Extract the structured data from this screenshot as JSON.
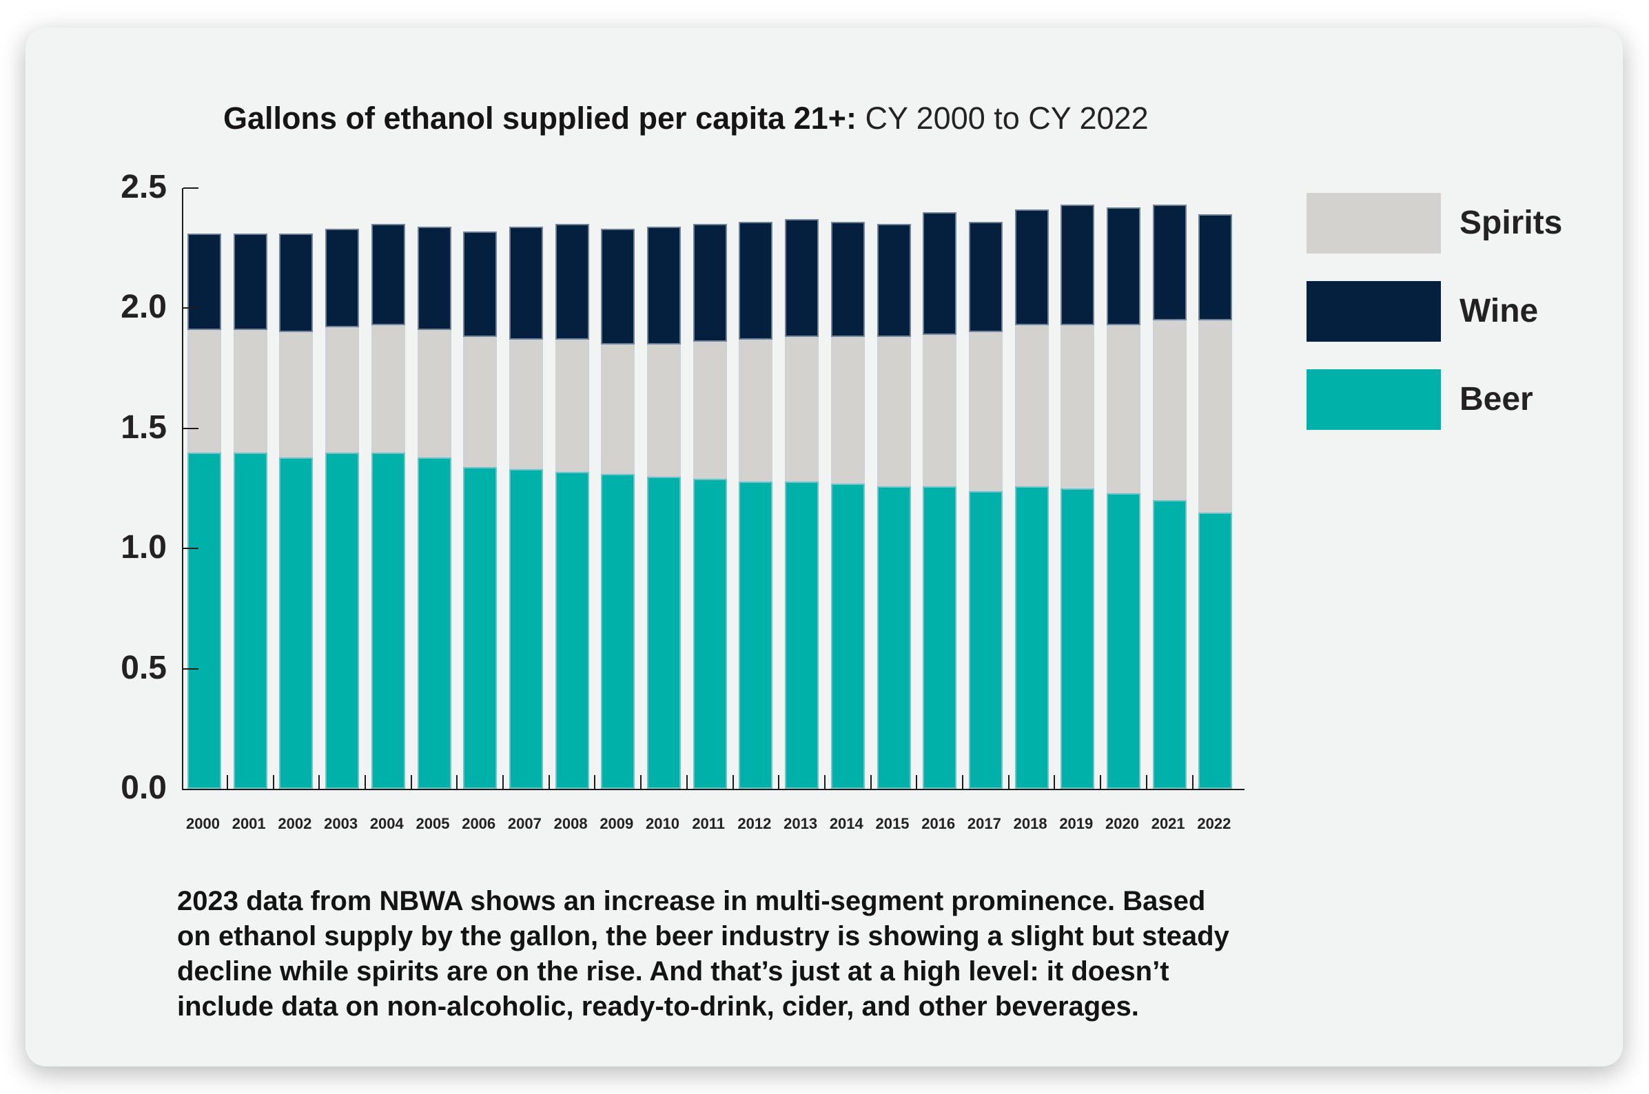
{
  "chart_data": {
    "type": "bar",
    "stacked": true,
    "title_bold": "Gallons of ethanol supplied per capita 21+:",
    "title_regular": " CY 2000 to CY 2022",
    "categories": [
      "2000",
      "2001",
      "2002",
      "2003",
      "2004",
      "2005",
      "2006",
      "2007",
      "2008",
      "2009",
      "2010",
      "2011",
      "2012",
      "2013",
      "2014",
      "2015",
      "2016",
      "2017",
      "2018",
      "2019",
      "2020",
      "2021",
      "2022"
    ],
    "series": [
      {
        "name": "Beer",
        "color": "#00b1a9",
        "values": [
          1.4,
          1.4,
          1.38,
          1.4,
          1.4,
          1.38,
          1.34,
          1.33,
          1.32,
          1.31,
          1.3,
          1.29,
          1.28,
          1.28,
          1.27,
          1.26,
          1.26,
          1.24,
          1.26,
          1.25,
          1.23,
          1.2,
          1.15
        ]
      },
      {
        "name": "Spirits",
        "color": "#d3d2cf",
        "values": [
          0.51,
          0.51,
          0.52,
          0.52,
          0.53,
          0.53,
          0.54,
          0.54,
          0.55,
          0.54,
          0.55,
          0.57,
          0.59,
          0.6,
          0.61,
          0.62,
          0.63,
          0.66,
          0.67,
          0.68,
          0.7,
          0.75,
          0.8
        ]
      },
      {
        "name": "Wine",
        "color": "#05203f",
        "values": [
          0.4,
          0.4,
          0.41,
          0.41,
          0.42,
          0.43,
          0.44,
          0.47,
          0.48,
          0.48,
          0.49,
          0.49,
          0.49,
          0.49,
          0.48,
          0.47,
          0.51,
          0.46,
          0.48,
          0.5,
          0.49,
          0.48,
          0.44
        ]
      }
    ],
    "stack_order": [
      "Beer",
      "Spirits",
      "Wine"
    ],
    "legend_order": [
      "Spirits",
      "Wine",
      "Beer"
    ],
    "ylim": [
      0,
      2.5
    ],
    "ytick_labels": [
      "0.0",
      "0.5",
      "1.0",
      "1.5",
      "2.0",
      "2.5"
    ],
    "grid": false,
    "legend_position": "right"
  },
  "caption": {
    "lines": [
      "2023 data from NBWA shows an increase in multi-segment prominence. Based",
      "on ethanol supply by the gallon, the beer industry is showing a slight but steady",
      "decline while spirits are on the rise. And that’s just at a high level: it doesn’t",
      "include data on non-alcoholic, ready-to-drink, cider, and other beverages."
    ]
  },
  "colors": {
    "card_background": "#f2f3f3",
    "page_background": "#ffffff",
    "axis": "#1c1c1c",
    "text": "#141313"
  }
}
